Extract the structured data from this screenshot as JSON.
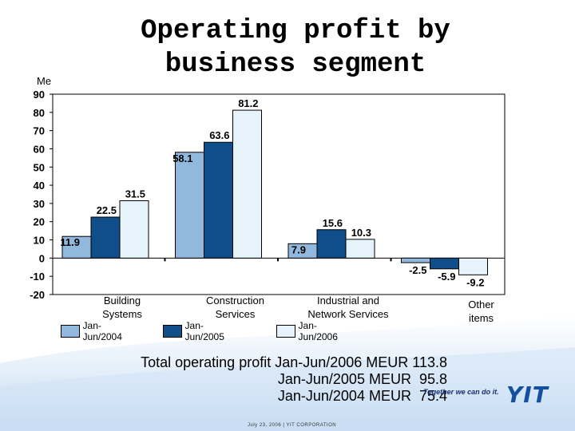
{
  "title": [
    "Operating profit by",
    "business segment"
  ],
  "colors": {
    "s2004": "#93b8de",
    "s2005": "#0f4e88",
    "s2006": "#e6f3fb"
  },
  "chart_data": {
    "type": "bar",
    "ylabel": "Me",
    "ylim": [
      -20,
      90
    ],
    "yticks": [
      90,
      80,
      70,
      60,
      50,
      40,
      30,
      20,
      10,
      0,
      -10,
      -20
    ],
    "categories": [
      "Building Systems",
      "Construction Services",
      "Industrial and Network Services",
      "Other items"
    ],
    "category_lines": [
      [
        "Building",
        "Systems"
      ],
      [
        "Construction",
        "Services"
      ],
      [
        "Industrial and",
        "Network Services"
      ],
      [
        "Other",
        "items"
      ]
    ],
    "series": [
      {
        "name": "Jan-Jun/2004",
        "values": [
          11.9,
          58.1,
          7.9,
          -2.5
        ]
      },
      {
        "name": "Jan-Jun/2005",
        "values": [
          22.5,
          63.6,
          15.6,
          -5.9
        ]
      },
      {
        "name": "Jan-Jun/2006",
        "values": [
          31.5,
          81.2,
          10.3,
          -9.2
        ]
      }
    ],
    "data_labels": [
      [
        "11.9",
        "22.5",
        "31.5"
      ],
      [
        "58.1",
        "63.6",
        "81.2"
      ],
      [
        "7.9",
        "15.6",
        "10.3"
      ],
      [
        "-2.5",
        "-5.9",
        "-9.2"
      ]
    ]
  },
  "legend": [
    "Jan-Jun/2004",
    "Jan-Jun/2005",
    "Jan-Jun/2006"
  ],
  "totals": [
    "Total operating profit Jan-Jun/2006 MEUR 113.8",
    "Jan-Jun/2005 MEUR  95.8",
    "Jan-Jun/2004 MEUR  75.4"
  ],
  "brand": {
    "tagline": "Together we can do it.",
    "logo": "YIT"
  },
  "footer": "July 23, 2006  |  YIT CORPORATION"
}
